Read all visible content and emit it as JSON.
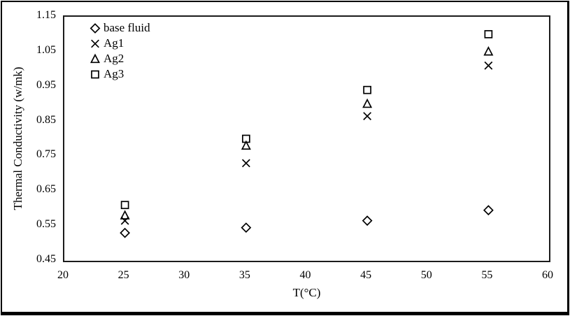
{
  "figure": {
    "background_color": "#ffffff",
    "border_color": "#000000",
    "marker_color": "#000000"
  },
  "chart_data": {
    "type": "scatter",
    "title": "",
    "xlabel": "T(°C)",
    "ylabel": "Thermal Conductivity (w/mk)",
    "xlim": [
      20,
      60
    ],
    "ylim": [
      0.45,
      1.15
    ],
    "x_ticks": [
      20,
      25,
      30,
      35,
      40,
      45,
      50,
      55,
      60
    ],
    "y_ticks": [
      0.45,
      0.55,
      0.65,
      0.75,
      0.85,
      0.95,
      1.05,
      1.15
    ],
    "categories": [
      25,
      35,
      45,
      55
    ],
    "series": [
      {
        "name": "base fluid",
        "marker": "diamond",
        "values": [
          0.53,
          0.545,
          0.565,
          0.595
        ]
      },
      {
        "name": "Ag1",
        "marker": "x",
        "values": [
          0.565,
          0.73,
          0.865,
          1.01
        ]
      },
      {
        "name": "Ag2",
        "marker": "triangle",
        "values": [
          0.58,
          0.78,
          0.9,
          1.05
        ]
      },
      {
        "name": "Ag3",
        "marker": "square",
        "values": [
          0.61,
          0.8,
          0.94,
          1.1
        ]
      }
    ],
    "legend_position": "top-left-inside",
    "grid": false
  }
}
